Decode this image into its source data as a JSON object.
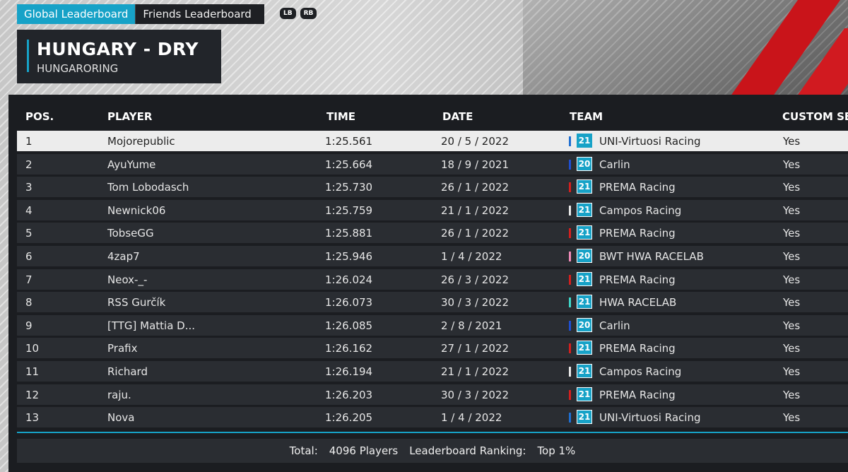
{
  "tabs": [
    {
      "label": "Global Leaderboard",
      "active": true
    },
    {
      "label": "Friends Leaderboard",
      "active": false
    }
  ],
  "hints": [
    "LB",
    "RB"
  ],
  "track": {
    "title": "HUNGARY - DRY",
    "subtitle": "HUNGARORING"
  },
  "headers": {
    "pos": "POS.",
    "player": "PLAYER",
    "time": "TIME",
    "date": "DATE",
    "team": "TEAM",
    "custom": "CUSTOM SE"
  },
  "colors": {
    "accent": "#17a2c7",
    "highlight_row": "#ececec"
  },
  "rows": [
    {
      "pos": "1",
      "player": "Mojorepublic",
      "time": "1:25.561",
      "date": "20 / 5 / 2022",
      "season": "21",
      "team": "UNI-Virtuosi Racing",
      "team_color": "#1f6fd1",
      "custom": "Yes"
    },
    {
      "pos": "2",
      "player": "AyuYume",
      "time": "1:25.664",
      "date": "18 / 9 / 2021",
      "season": "20",
      "team": "Carlin",
      "team_color": "#1f4fd1",
      "custom": "Yes"
    },
    {
      "pos": "3",
      "player": "Tom Lobodasch",
      "time": "1:25.730",
      "date": "26 / 1 / 2022",
      "season": "21",
      "team": "PREMA Racing",
      "team_color": "#d3201f",
      "custom": "Yes"
    },
    {
      "pos": "4",
      "player": "Newnick06",
      "time": "1:25.759",
      "date": "21 / 1 / 2022",
      "season": "21",
      "team": "Campos Racing",
      "team_color": "#e8e8e8",
      "custom": "Yes"
    },
    {
      "pos": "5",
      "player": "TobseGG",
      "time": "1:25.881",
      "date": "26 / 1 / 2022",
      "season": "21",
      "team": "PREMA Racing",
      "team_color": "#d3201f",
      "custom": "Yes"
    },
    {
      "pos": "6",
      "player": "4zap7",
      "time": "1:25.946",
      "date": "1 / 4 / 2022",
      "season": "20",
      "team": "BWT HWA RACELAB",
      "team_color": "#f08ab8",
      "custom": "Yes"
    },
    {
      "pos": "7",
      "player": "Neox-_-",
      "time": "1:26.024",
      "date": "26 / 3 / 2022",
      "season": "21",
      "team": "PREMA Racing",
      "team_color": "#d3201f",
      "custom": "Yes"
    },
    {
      "pos": "8",
      "player": "RSS Gurčík",
      "time": "1:26.073",
      "date": "30 / 3 / 2022",
      "season": "21",
      "team": "HWA RACELAB",
      "team_color": "#3fd6c8",
      "custom": "Yes"
    },
    {
      "pos": "9",
      "player": "[TTG] Mattia D...",
      "time": "1:26.085",
      "date": "2 / 8 / 2021",
      "season": "20",
      "team": "Carlin",
      "team_color": "#1f4fd1",
      "custom": "Yes"
    },
    {
      "pos": "10",
      "player": "Prafix",
      "time": "1:26.162",
      "date": "27 / 1 / 2022",
      "season": "21",
      "team": "PREMA Racing",
      "team_color": "#d3201f",
      "custom": "Yes"
    },
    {
      "pos": "11",
      "player": "Richard",
      "time": "1:26.194",
      "date": "21 / 1 / 2022",
      "season": "21",
      "team": "Campos Racing",
      "team_color": "#e8e8e8",
      "custom": "Yes"
    },
    {
      "pos": "12",
      "player": "raju.",
      "time": "1:26.203",
      "date": "30 / 3 / 2022",
      "season": "21",
      "team": "PREMA Racing",
      "team_color": "#d3201f",
      "custom": "Yes"
    },
    {
      "pos": "13",
      "player": "Nova",
      "time": "1:26.205",
      "date": "1 / 4 / 2022",
      "season": "21",
      "team": "UNI-Virtuosi Racing",
      "team_color": "#1f6fd1",
      "custom": "Yes"
    }
  ],
  "footer": {
    "total_label": "Total:",
    "total_value": "4096 Players",
    "ranking_label": "Leaderboard Ranking:",
    "ranking_value": "Top 1%"
  }
}
